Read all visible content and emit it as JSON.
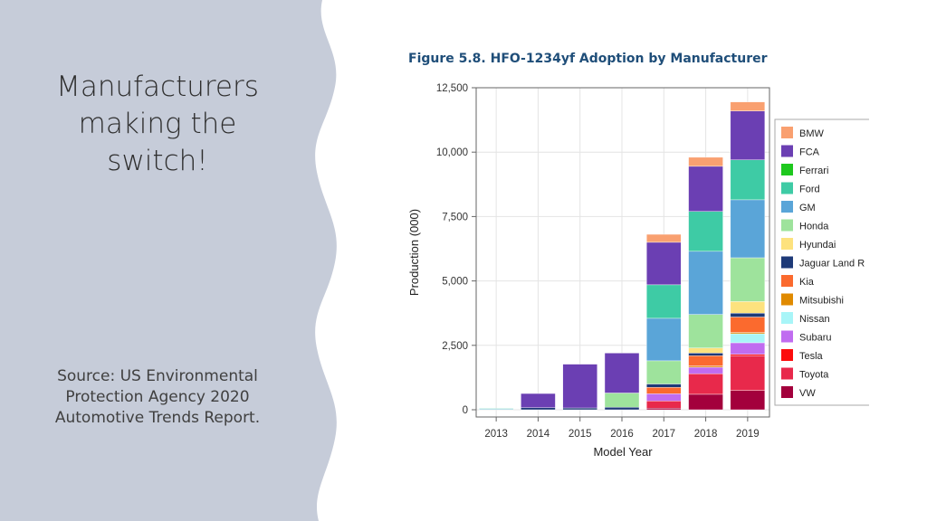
{
  "slide": {
    "title_lines": [
      "Manufacturers",
      "making the",
      "switch!"
    ],
    "source_lines": [
      "Source:  US Environmental",
      "Protection Agency  2020",
      "Automotive Trends Report."
    ],
    "panel_color": "#c6ccd9"
  },
  "chart_data": {
    "type": "bar",
    "stacked": true,
    "title": "Figure 5.8. HFO-1234yf Adoption by Manufacturer",
    "xlabel": "Model Year",
    "ylabel": "Production (000)",
    "ylim": [
      0,
      12500
    ],
    "yticks": [
      0,
      2500,
      5000,
      7500,
      10000,
      12500
    ],
    "ytick_labels": [
      "0",
      "2,500",
      "5,000",
      "7,500",
      "10,000",
      "12,500"
    ],
    "grid": true,
    "legend_position": "right",
    "categories": [
      "2013",
      "2014",
      "2015",
      "2016",
      "2017",
      "2018",
      "2019"
    ],
    "series": [
      {
        "name": "VW",
        "color": "#a3003c",
        "values": [
          0,
          0,
          0,
          0,
          60,
          600,
          750
        ]
      },
      {
        "name": "Toyota",
        "color": "#e8294b",
        "values": [
          0,
          0,
          0,
          0,
          280,
          800,
          1350
        ]
      },
      {
        "name": "Tesla",
        "color": "#fc0c0c",
        "values": [
          0,
          0,
          0,
          0,
          0,
          0,
          50
        ]
      },
      {
        "name": "Subaru",
        "color": "#c06cf0",
        "values": [
          0,
          0,
          0,
          0,
          280,
          250,
          450
        ]
      },
      {
        "name": "Nissan",
        "color": "#a8f5f8",
        "values": [
          0,
          0,
          0,
          0,
          0,
          0,
          350
        ]
      },
      {
        "name": "Mitsubishi",
        "color": "#e08a00",
        "values": [
          0,
          0,
          0,
          0,
          0,
          50,
          50
        ]
      },
      {
        "name": "Kia",
        "color": "#fb6a2e",
        "values": [
          0,
          0,
          0,
          0,
          250,
          400,
          600
        ]
      },
      {
        "name": "Jaguar Land Rover",
        "color": "#1e3a78",
        "values": [
          0,
          80,
          70,
          100,
          130,
          100,
          150
        ]
      },
      {
        "name": "Hyundai",
        "color": "#fde27e",
        "values": [
          0,
          0,
          0,
          0,
          0,
          200,
          450
        ]
      },
      {
        "name": "Honda",
        "color": "#9ee39c",
        "values": [
          0,
          0,
          0,
          550,
          900,
          1300,
          1700
        ]
      },
      {
        "name": "GM",
        "color": "#5aa5d8",
        "values": [
          30,
          0,
          0,
          0,
          1650,
          2450,
          2250
        ]
      },
      {
        "name": "Ford",
        "color": "#3ecba5",
        "values": [
          20,
          0,
          0,
          0,
          1300,
          1550,
          1550
        ]
      },
      {
        "name": "Ferrari",
        "color": "#1ec81e",
        "values": [
          0,
          0,
          0,
          0,
          0,
          0,
          0
        ]
      },
      {
        "name": "FCA",
        "color": "#6b3fb3",
        "values": [
          0,
          550,
          1700,
          1550,
          1650,
          1750,
          1900
        ]
      },
      {
        "name": "BMW",
        "color": "#f9a070",
        "values": [
          0,
          0,
          0,
          0,
          310,
          350,
          350
        ]
      }
    ],
    "legend_order": [
      "BMW",
      "FCA",
      "Ferrari",
      "Ford",
      "GM",
      "Honda",
      "Hyundai",
      "Jaguar Land R",
      "Kia",
      "Mitsubishi",
      "Nissan",
      "Subaru",
      "Tesla",
      "Toyota",
      "VW"
    ]
  }
}
